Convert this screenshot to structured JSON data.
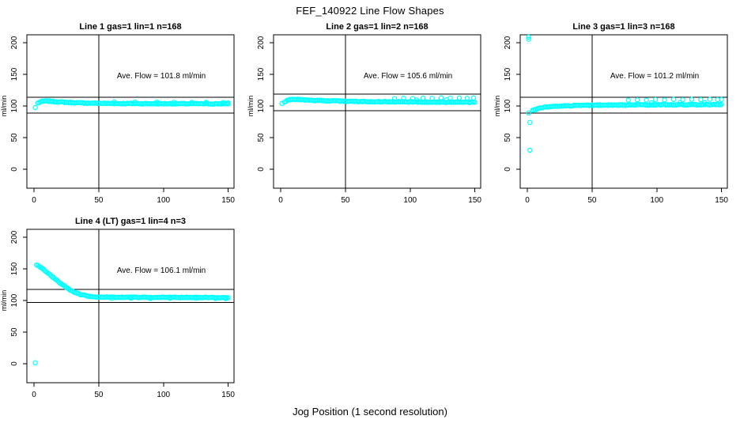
{
  "page_title": "FEF_140922  Line Flow Shapes",
  "xlabel": "Jog Position (1 second resolution)",
  "point_color": "#00FFFF",
  "axis_color": "#000000",
  "chart_data": [
    {
      "type": "scatter",
      "title": "Line 1 gas=1 lin=1 n=168",
      "annotation": "Ave. Flow =  101.8  ml/min",
      "ave_flow_ml_min": 101.8,
      "n": 168,
      "ylabel": "ml/min",
      "xticks": [
        0,
        50,
        100,
        150
      ],
      "yticks": [
        0,
        50,
        100,
        150,
        200
      ],
      "xlim": [
        -5.5,
        154.5
      ],
      "ylim": [
        -30,
        212.5
      ],
      "vline_x": 50,
      "hlines": [
        114,
        88.5
      ],
      "band": [
        [
          3,
          104.5
        ],
        [
          5,
          106.5
        ],
        [
          7,
          107.5
        ],
        [
          10,
          107.8
        ],
        [
          14,
          107.2
        ],
        [
          20,
          106.3
        ],
        [
          28,
          105.4
        ],
        [
          38,
          104.7
        ],
        [
          50,
          104.2
        ],
        [
          65,
          103.9
        ],
        [
          80,
          103.7
        ],
        [
          100,
          103.6
        ],
        [
          120,
          103.5
        ],
        [
          140,
          103.4
        ],
        [
          150,
          103.5
        ]
      ],
      "outliers": [
        [
          1,
          97.5
        ]
      ],
      "speckle": [
        [
          62,
          106.5
        ],
        [
          78,
          106.2
        ],
        [
          95,
          106.0
        ],
        [
          108,
          105.9
        ],
        [
          122,
          105.7
        ],
        [
          133,
          105.8
        ],
        [
          146,
          105.6
        ],
        [
          150,
          104.8
        ]
      ]
    },
    {
      "type": "scatter",
      "title": "Line 2 gas=1 lin=2 n=168",
      "annotation": "Ave. Flow =  105.6  ml/min",
      "ave_flow_ml_min": 105.6,
      "n": 168,
      "ylabel": "ml/min",
      "xticks": [
        0,
        50,
        100,
        150
      ],
      "yticks": [
        0,
        50,
        100,
        150,
        200
      ],
      "xlim": [
        -5.5,
        154.5
      ],
      "ylim": [
        -30,
        212.5
      ],
      "vline_x": 50,
      "hlines": [
        118.8,
        92.8
      ],
      "band": [
        [
          3,
          106.5
        ],
        [
          5,
          108.8
        ],
        [
          8,
          110.2
        ],
        [
          12,
          110.4
        ],
        [
          18,
          109.6
        ],
        [
          26,
          108.8
        ],
        [
          36,
          108.1
        ],
        [
          48,
          107.5
        ],
        [
          62,
          107.1
        ],
        [
          80,
          106.7
        ],
        [
          100,
          106.4
        ],
        [
          120,
          106.1
        ],
        [
          140,
          105.9
        ],
        [
          150,
          105.8
        ]
      ],
      "outliers": [
        [
          1,
          104
        ]
      ],
      "speckle": [
        [
          88,
          111.5
        ],
        [
          95,
          112.2
        ],
        [
          102,
          111.8
        ],
        [
          110,
          112.5
        ],
        [
          117,
          112.0
        ],
        [
          124,
          112.8
        ],
        [
          131,
          112.3
        ],
        [
          138,
          112.6
        ],
        [
          144,
          112.2
        ],
        [
          149,
          112.7
        ],
        [
          105,
          109.5
        ],
        [
          128,
          109.8
        ]
      ]
    },
    {
      "type": "scatter",
      "title": "Line 3 gas=1 lin=3 n=168",
      "annotation": "Ave. Flow =  101.2  ml/min",
      "ave_flow_ml_min": 101.2,
      "n": 168,
      "ylabel": "ml/min",
      "xticks": [
        0,
        50,
        100,
        150
      ],
      "yticks": [
        0,
        50,
        100,
        150,
        200
      ],
      "xlim": [
        -5.5,
        154.5
      ],
      "ylim": [
        -30,
        212.5
      ],
      "vline_x": 50,
      "hlines": [
        113.8,
        89
      ],
      "band": [
        [
          4,
          92.5
        ],
        [
          6,
          94
        ],
        [
          8,
          95.5
        ],
        [
          11,
          97
        ],
        [
          15,
          98.3
        ],
        [
          20,
          99.3
        ],
        [
          27,
          100.1
        ],
        [
          35,
          100.6
        ],
        [
          45,
          101
        ],
        [
          60,
          101.3
        ],
        [
          80,
          101.6
        ],
        [
          100,
          101.8
        ],
        [
          120,
          102
        ],
        [
          140,
          102.1
        ],
        [
          150,
          102.2
        ]
      ],
      "outliers": [
        [
          1,
          209
        ],
        [
          1,
          205.5
        ],
        [
          1,
          89
        ],
        [
          2,
          74
        ],
        [
          2,
          30
        ]
      ],
      "speckle": [
        [
          78,
          109.2
        ],
        [
          85,
          109.8
        ],
        [
          92,
          109.3
        ],
        [
          99,
          110.1
        ],
        [
          106,
          109.6
        ],
        [
          113,
          110.3
        ],
        [
          120,
          109.7
        ],
        [
          127,
          110.4
        ],
        [
          134,
          109.9
        ],
        [
          141,
          110.5
        ],
        [
          147,
          110.0
        ],
        [
          150,
          110.2
        ],
        [
          96,
          105.0
        ],
        [
          118,
          105.4
        ],
        [
          137,
          105.2
        ]
      ]
    },
    {
      "type": "scatter",
      "title": "Line 4 (LT) gas=1 lin=4 n=3",
      "annotation": "Ave. Flow =  106.1  ml/min",
      "ave_flow_ml_min": 106.1,
      "n": 3,
      "ylabel": "ml/min",
      "xticks": [
        0,
        50,
        100,
        150
      ],
      "yticks": [
        0,
        50,
        100,
        150,
        200
      ],
      "xlim": [
        -5.5,
        154.5
      ],
      "ylim": [
        -30,
        212.5
      ],
      "vline_x": 50,
      "hlines": [
        117.5,
        97
      ],
      "band": [
        [
          2,
          156
        ],
        [
          4,
          154.5
        ],
        [
          6,
          151.5
        ],
        [
          8,
          148
        ],
        [
          10,
          144.5
        ],
        [
          13,
          139.5
        ],
        [
          16,
          134.5
        ],
        [
          19,
          129.5
        ],
        [
          22,
          125
        ],
        [
          25,
          120.5
        ],
        [
          28,
          116.5
        ],
        [
          31,
          113.5
        ],
        [
          34,
          111
        ],
        [
          37,
          109
        ],
        [
          40,
          107.5
        ],
        [
          44,
          106.3
        ],
        [
          48,
          105.7
        ],
        [
          55,
          105.2
        ],
        [
          65,
          105
        ],
        [
          80,
          104.9
        ],
        [
          100,
          104.9
        ],
        [
          120,
          104.8
        ],
        [
          135,
          104.9
        ],
        [
          150,
          104.3
        ]
      ],
      "outliers": [
        [
          1,
          1.5
        ]
      ],
      "speckle": [
        [
          60,
          103.3
        ],
        [
          75,
          103.6
        ],
        [
          90,
          103.2
        ],
        [
          105,
          103.5
        ],
        [
          125,
          103.3
        ],
        [
          140,
          103.1
        ],
        [
          148,
          102.8
        ]
      ]
    }
  ]
}
